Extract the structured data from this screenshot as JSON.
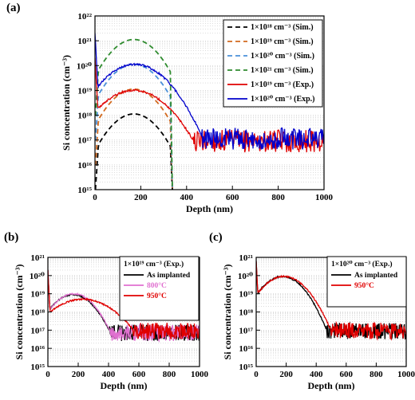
{
  "chart_data": [
    {
      "panel": "(a)",
      "type": "line",
      "xlabel": "Depth (nm)",
      "ylabel": "Si concentration (cm⁻³)",
      "xlim": [
        0,
        1000
      ],
      "ylim_exp": [
        15,
        22
      ],
      "yscale": "log",
      "grid": "horizontal dotted",
      "legend_position": "top-right",
      "x_ticks": [
        0,
        200,
        400,
        600,
        800,
        1000
      ],
      "y_ticks_exp": [
        15,
        16,
        17,
        18,
        19,
        20,
        21,
        22
      ],
      "series": [
        {
          "name": "1×10¹⁸ cm⁻³ (Sim.)",
          "style": "dashed",
          "color": "#000000",
          "kind": "sim",
          "peak_log": 18.05,
          "sigma": 65,
          "mu": 170,
          "tail_end": 330
        },
        {
          "name": "1×10¹⁹ cm⁻³ (Sim.)",
          "style": "dashed",
          "color": "#d2691e",
          "kind": "sim",
          "peak_log": 19.05,
          "sigma": 65,
          "mu": 170,
          "tail_end": 330
        },
        {
          "name": "1×10²⁰ cm⁻³ (Sim.)",
          "style": "dashed",
          "color": "#4a90d9",
          "kind": "sim",
          "peak_log": 20.05,
          "sigma": 65,
          "mu": 170,
          "tail_end": 330
        },
        {
          "name": "1×10²¹ cm⁻³ (Sim.)",
          "style": "dashed",
          "color": "#2e8b2e",
          "kind": "sim",
          "peak_log": 21.05,
          "sigma": 65,
          "mu": 170,
          "tail_end": 330
        },
        {
          "name": "1×10¹⁹ cm⁻³ (Exp.)",
          "style": "solid",
          "color": "#e00000",
          "kind": "exp",
          "surface_log": 20.3,
          "peak_log": 19.0,
          "mu": 170,
          "sigma": 85,
          "noise_floor": 17.0
        },
        {
          "name": "1×10²⁰ cm⁻³ (Exp.)",
          "style": "solid",
          "color": "#0000cc",
          "kind": "exp",
          "surface_log": 21.3,
          "peak_log": 20.05,
          "mu": 175,
          "sigma": 80,
          "noise_floor": 17.1
        }
      ]
    },
    {
      "panel": "(b)",
      "type": "line",
      "xlabel": "Depth (nm)",
      "ylabel": "Si concentration (cm⁻³)",
      "xlim": [
        0,
        1000
      ],
      "ylim_exp": [
        15,
        21
      ],
      "yscale": "log",
      "legend_title": "1×10¹⁹ cm⁻³ (Exp.)",
      "legend_position": "top-right",
      "x_ticks": [
        0,
        200,
        400,
        600,
        800,
        1000
      ],
      "y_ticks_exp": [
        15,
        16,
        17,
        18,
        19,
        20,
        21
      ],
      "series": [
        {
          "name": "As implanted",
          "color": "#000000",
          "surface_log": 20.3,
          "peak_log": 18.95,
          "mu": 165,
          "sigma": 80,
          "noise_floor": 16.9
        },
        {
          "name": "800°C",
          "color": "#e070d0",
          "surface_log": 20.3,
          "peak_log": 19.0,
          "mu": 170,
          "sigma": 78,
          "noise_floor": 16.9
        },
        {
          "name": "950°C",
          "color": "#e00000",
          "surface_log": 20.3,
          "peak_log": 18.7,
          "mu": 230,
          "sigma": 120,
          "noise_floor": 17.0
        }
      ]
    },
    {
      "panel": "(c)",
      "type": "line",
      "xlabel": "Depth (nm)",
      "ylabel": "Si concentration (cm⁻³)",
      "xlim": [
        0,
        1000
      ],
      "ylim_exp": [
        15,
        21
      ],
      "yscale": "log",
      "legend_title": "1×10²⁰ cm⁻³ (Exp.)",
      "legend_position": "top-right",
      "x_ticks": [
        0,
        200,
        400,
        600,
        800,
        1000
      ],
      "y_ticks_exp": [
        15,
        16,
        17,
        18,
        19,
        20,
        21
      ],
      "series": [
        {
          "name": "As implanted",
          "color": "#000000",
          "surface_log": 20.8,
          "peak_log": 19.95,
          "mu": 175,
          "sigma": 80,
          "noise_floor": 17.0
        },
        {
          "name": "950°C",
          "color": "#e00000",
          "surface_log": 20.8,
          "peak_log": 19.95,
          "mu": 185,
          "sigma": 85,
          "noise_floor": 17.0
        }
      ]
    }
  ]
}
